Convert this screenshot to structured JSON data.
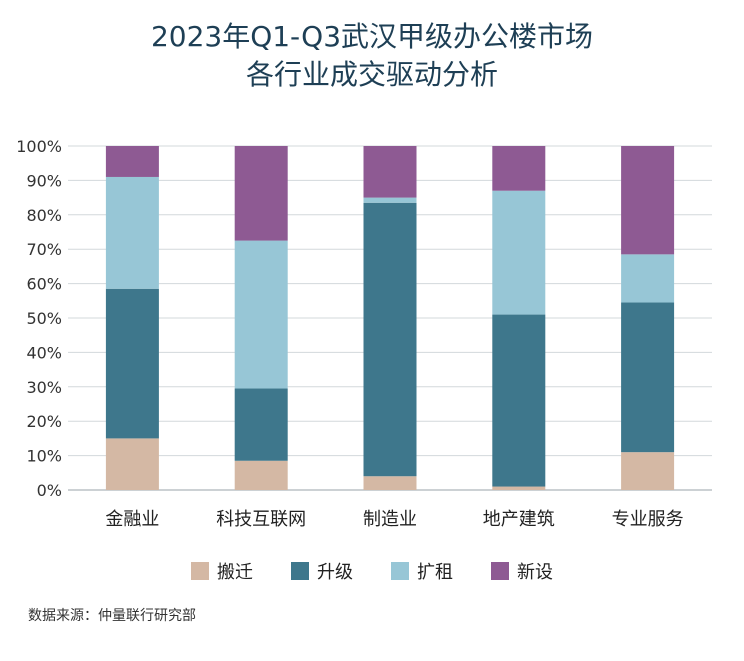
{
  "title_line1": "2023年Q1-Q3武汉甲级办公楼市场",
  "title_line2": "各行业成交驱动分析",
  "source": "数据来源：仲量联行研究部",
  "chart_data": {
    "type": "bar",
    "stacked": true,
    "title": "2023年Q1-Q3武汉甲级办公楼市场 各行业成交驱动分析",
    "categories": [
      "金融业",
      "科技互联网",
      "制造业",
      "地产建筑",
      "专业服务"
    ],
    "series": [
      {
        "name": "搬迁",
        "color": "#d4b8a4",
        "values": [
          15,
          8.5,
          4,
          1,
          11
        ]
      },
      {
        "name": "升级",
        "color": "#3e778c",
        "values": [
          43.5,
          21,
          79.5,
          50,
          43.5
        ]
      },
      {
        "name": "扩租",
        "color": "#97c6d6",
        "values": [
          32.5,
          43,
          1.5,
          36,
          14
        ]
      },
      {
        "name": "新设",
        "color": "#8e5a93",
        "values": [
          9,
          27.5,
          15,
          13,
          31.5
        ]
      }
    ],
    "ylim": [
      0,
      100
    ],
    "yticks": [
      "0%",
      "10%",
      "20%",
      "30%",
      "40%",
      "50%",
      "60%",
      "70%",
      "80%",
      "90%",
      "100%"
    ],
    "grid": true,
    "legend": "bottom"
  }
}
